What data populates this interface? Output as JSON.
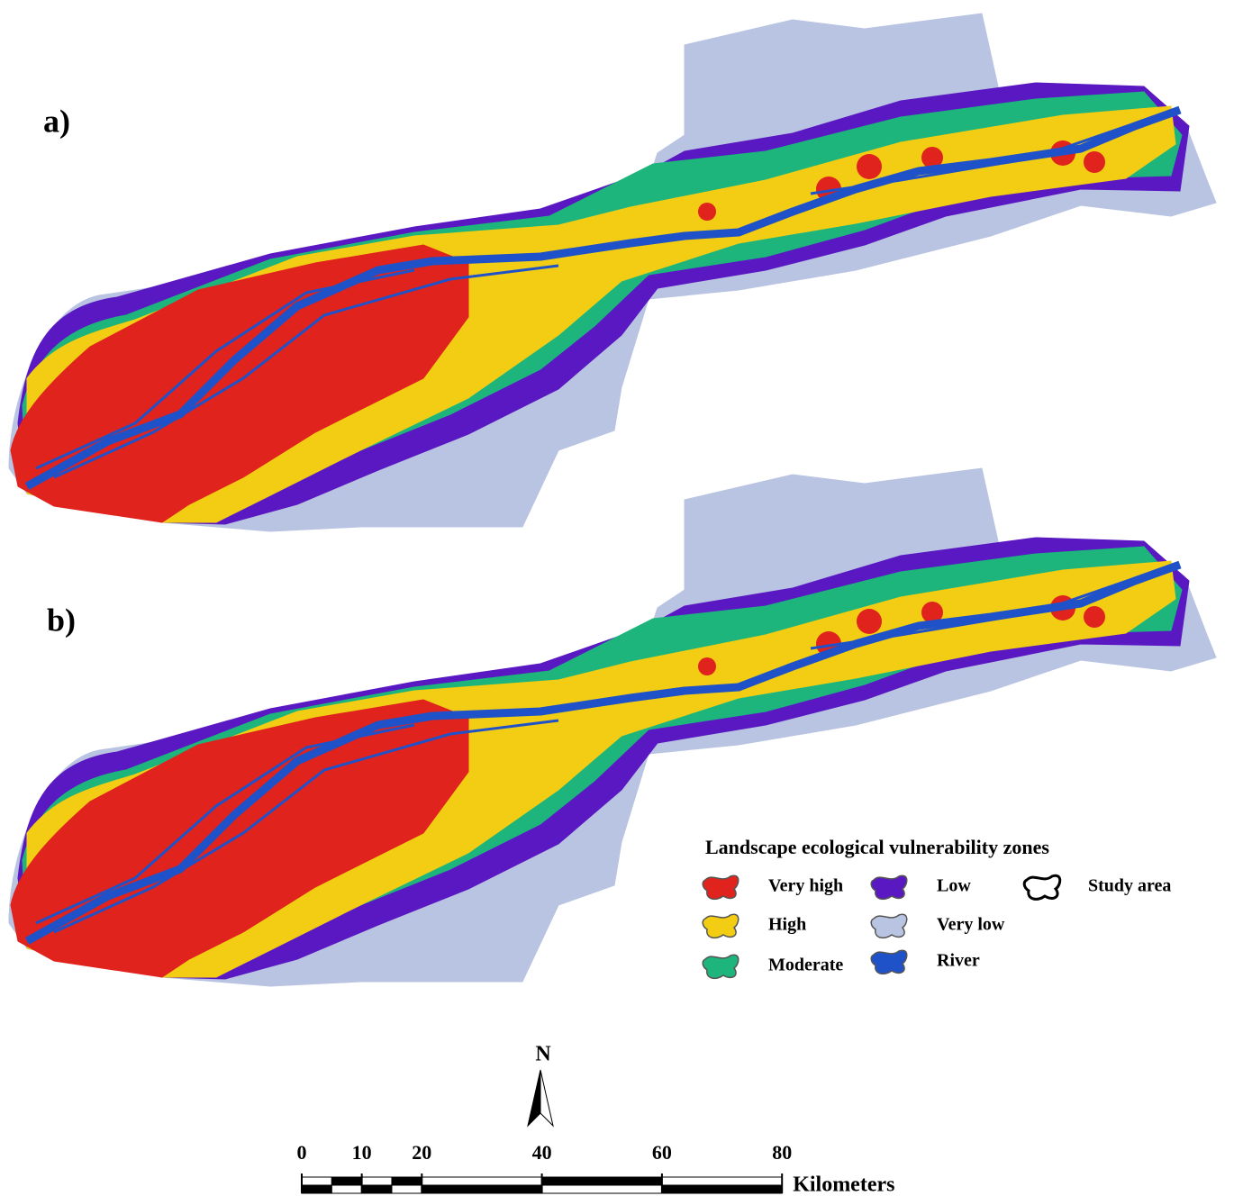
{
  "panels": [
    {
      "label": "a)"
    },
    {
      "label": "b)"
    }
  ],
  "legend": {
    "title": "Landscape ecological vulnerability zones",
    "items": [
      {
        "label": "Very high",
        "color": "#e0231d"
      },
      {
        "label": "High",
        "color": "#f2cd14"
      },
      {
        "label": "Moderate",
        "color": "#1db57c"
      },
      {
        "label": "Low",
        "color": "#5a18c2"
      },
      {
        "label": "Very low",
        "color": "#b9c4e2"
      },
      {
        "label": "River",
        "color": "#1f52c8"
      },
      {
        "label": "Study area",
        "color": "#ffffff"
      }
    ]
  },
  "north_arrow": {
    "label": "N"
  },
  "scale_bar": {
    "ticks": [
      0,
      10,
      20,
      40,
      60,
      80
    ],
    "unit": "Kilometers"
  }
}
